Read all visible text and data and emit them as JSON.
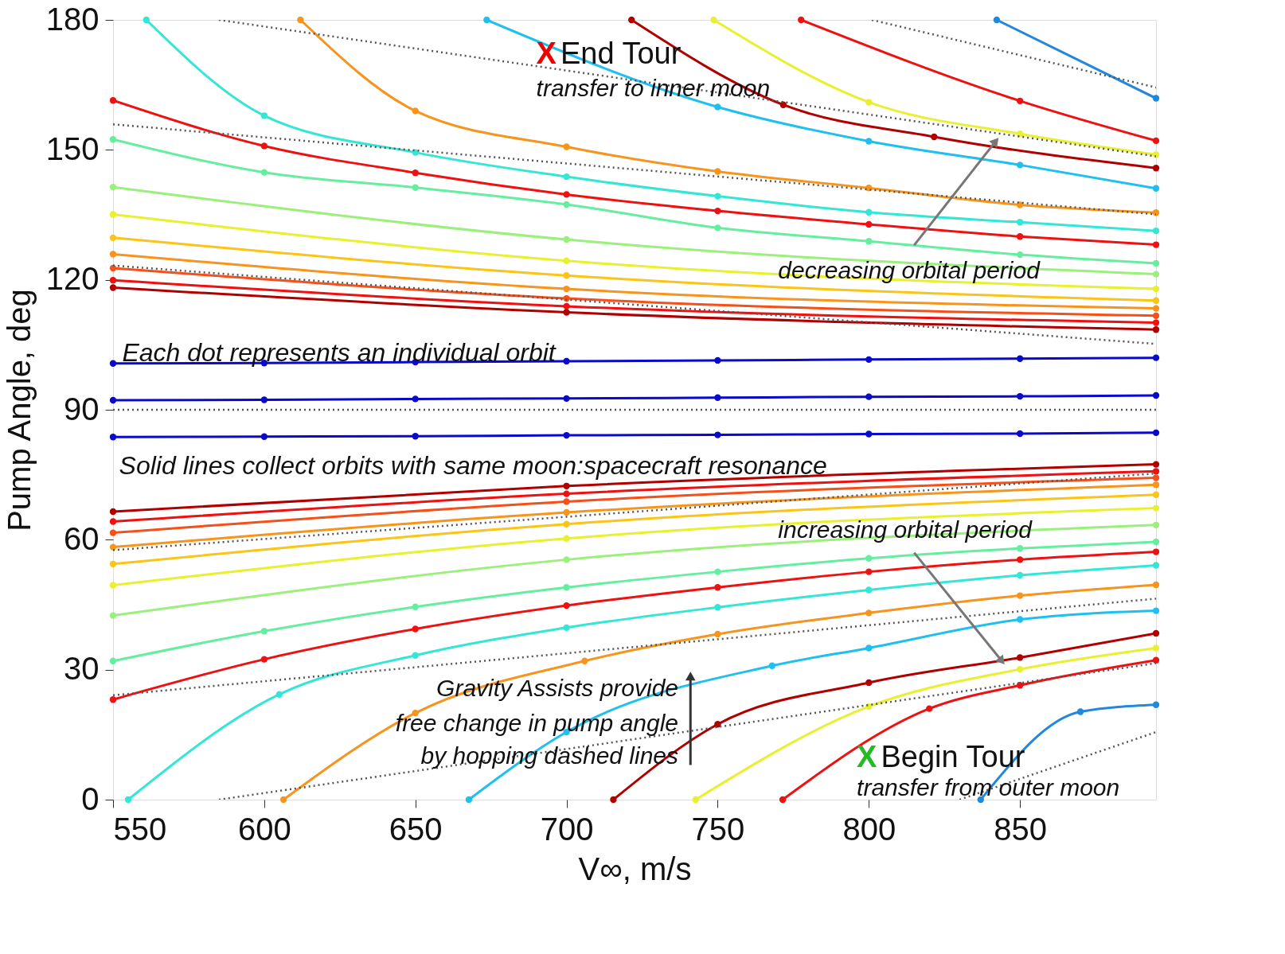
{
  "chart_data": {
    "type": "line",
    "xlabel": "V∞, m/s",
    "ylabel": "Pump Angle, deg",
    "xlim": [
      550,
      895
    ],
    "xticks": [
      550,
      600,
      650,
      700,
      750,
      800,
      850
    ],
    "ylim": [
      0,
      180
    ],
    "yticks": [
      0,
      30,
      60,
      90,
      120,
      150,
      180
    ],
    "grid": false,
    "marker": "circle",
    "line_style": "solid",
    "series": [
      {
        "color": "#0a0acc",
        "x": [
          550,
          600,
          650,
          700,
          750,
          800,
          850,
          895
        ],
        "values": [
          100.7,
          100.8,
          101,
          101.2,
          101.4,
          101.6,
          101.8,
          102
        ]
      },
      {
        "color": "#0a0acc",
        "x": [
          550,
          600,
          650,
          700,
          750,
          800,
          850,
          895
        ],
        "values": [
          92.2,
          92.3,
          92.5,
          92.6,
          92.8,
          93,
          93.1,
          93.3
        ]
      },
      {
        "color": "#0a0acc",
        "x": [
          550,
          600,
          650,
          700,
          750,
          800,
          850,
          895
        ],
        "values": [
          83.7,
          83.8,
          83.9,
          84.1,
          84.2,
          84.4,
          84.5,
          84.7
        ]
      },
      {
        "color": "#b00000",
        "x": [
          550,
          700,
          895
        ],
        "values": [
          118.2,
          112.5,
          108.5
        ]
      },
      {
        "color": "#ee1111",
        "x": [
          550,
          700,
          895
        ],
        "values": [
          119.9,
          113.9,
          110.1
        ]
      },
      {
        "color": "#f5501a",
        "x": [
          550,
          700,
          895
        ],
        "values": [
          122.7,
          115.7,
          111.7
        ]
      },
      {
        "color": "#f7941d",
        "x": [
          550,
          700,
          895
        ],
        "values": [
          125.9,
          117.9,
          113.4
        ]
      },
      {
        "color": "#fbc418",
        "x": [
          550,
          700,
          895
        ],
        "values": [
          129.7,
          121,
          115.2
        ]
      },
      {
        "color": "#e8f030",
        "x": [
          550,
          700,
          895
        ],
        "values": [
          135.1,
          124.4,
          117.9
        ]
      },
      {
        "color": "#9af07a",
        "x": [
          550,
          700,
          895
        ],
        "values": [
          141.4,
          129.3,
          121.3
        ]
      },
      {
        "color": "#66eea0",
        "x": [
          550,
          600,
          650,
          700,
          750,
          800,
          850,
          895
        ],
        "values": [
          152.4,
          144.8,
          141.3,
          137.4,
          132,
          128.9,
          125.8,
          123.8
        ]
      },
      {
        "color": "#ee1111",
        "x": [
          550,
          600,
          650,
          700,
          750,
          800,
          850,
          895
        ],
        "values": [
          161.4,
          150.9,
          144.7,
          139.7,
          135.9,
          132.8,
          130,
          128.1
        ]
      },
      {
        "color": "#33e6d6",
        "x": [
          561,
          600,
          650,
          700,
          750,
          800,
          850,
          895
        ],
        "values": [
          180,
          157.9,
          149.4,
          143.8,
          139.3,
          135.6,
          133.3,
          131.3
        ]
      },
      {
        "color": "#f7941d",
        "x": [
          612,
          650,
          700,
          750,
          800,
          850,
          895
        ],
        "values": [
          180,
          159,
          150.7,
          145,
          141.2,
          137.3,
          135.5
        ]
      },
      {
        "color": "#1fbfef",
        "x": [
          673.6,
          750,
          800,
          850,
          895
        ],
        "values": [
          180,
          159.9,
          152,
          146.5,
          141.1
        ]
      },
      {
        "color": "#b00000",
        "x": [
          721.5,
          771.7,
          821.6,
          895
        ],
        "values": [
          180,
          160.4,
          153,
          145.8
        ]
      },
      {
        "color": "#e8f030",
        "x": [
          748.7,
          800,
          850,
          895
        ],
        "values": [
          180,
          161,
          153.7,
          148.9
        ]
      },
      {
        "color": "#ee1111",
        "x": [
          777.6,
          850,
          895
        ],
        "values": [
          180,
          161.3,
          152.1
        ]
      },
      {
        "color": "#2288dd",
        "x": [
          842.3,
          895
        ],
        "values": [
          180,
          161.9
        ]
      },
      {
        "color": "#b00000",
        "x": [
          550,
          700,
          895
        ],
        "values": [
          66.5,
          72.4,
          77.4
        ]
      },
      {
        "color": "#ee1111",
        "x": [
          550,
          700,
          895
        ],
        "values": [
          64.2,
          70.6,
          75.8
        ]
      },
      {
        "color": "#f5501a",
        "x": [
          550,
          700,
          895
        ],
        "values": [
          61.6,
          68.8,
          74.3
        ]
      },
      {
        "color": "#f7941d",
        "x": [
          550,
          700,
          895
        ],
        "values": [
          58.3,
          66.3,
          72.7
        ]
      },
      {
        "color": "#fbc418",
        "x": [
          550,
          700,
          895
        ],
        "values": [
          54.4,
          63.6,
          70.4
        ]
      },
      {
        "color": "#e8f030",
        "x": [
          550,
          700,
          895
        ],
        "values": [
          49.5,
          60.3,
          67.3
        ]
      },
      {
        "color": "#9af07a",
        "x": [
          550,
          700,
          895
        ],
        "values": [
          42.5,
          55.4,
          63.4
        ]
      },
      {
        "color": "#66eea0",
        "x": [
          550,
          600,
          650,
          700,
          750,
          800,
          850,
          895
        ],
        "values": [
          32,
          38.9,
          44.5,
          49,
          52.6,
          55.7,
          58,
          59.5
        ]
      },
      {
        "color": "#ee1111",
        "x": [
          550,
          600,
          650,
          700,
          750,
          800,
          850,
          895
        ],
        "values": [
          23.1,
          32.4,
          39.4,
          44.8,
          49,
          52.6,
          55.4,
          57.2
        ]
      },
      {
        "color": "#33e6d6",
        "x": [
          555,
          605,
          650,
          700,
          750,
          800,
          850,
          895
        ],
        "values": [
          0,
          24.3,
          33.3,
          39.7,
          44.4,
          48.4,
          51.8,
          54.1
        ]
      },
      {
        "color": "#f7941d",
        "x": [
          606.4,
          650,
          706,
          750,
          800,
          850,
          895
        ],
        "values": [
          0,
          20,
          32,
          38.2,
          43.1,
          47.1,
          49.6
        ]
      },
      {
        "color": "#1fbfef",
        "x": [
          667.7,
          700,
          768,
          800,
          850,
          895
        ],
        "values": [
          0,
          15.6,
          30.9,
          35,
          41.6,
          43.6
        ]
      },
      {
        "color": "#b00000",
        "x": [
          715.5,
          750,
          800,
          850,
          895
        ],
        "values": [
          0,
          17.4,
          27,
          32.8,
          38.4
        ]
      },
      {
        "color": "#e8f030",
        "x": [
          742.7,
          800,
          850,
          895
        ],
        "values": [
          0,
          21.5,
          30.1,
          35
        ]
      },
      {
        "color": "#ee1111",
        "x": [
          771.5,
          820,
          850,
          895
        ],
        "values": [
          0,
          21,
          26.4,
          32.2
        ]
      },
      {
        "color": "#2288dd",
        "x": [
          837,
          870,
          895
        ],
        "values": [
          0,
          20.3,
          21.9
        ]
      },
      {
        "color": "#555555",
        "marker": "none",
        "line_style": "dotted",
        "x": [
          585,
          895
        ],
        "values": [
          180,
          148.5
        ]
      },
      {
        "color": "#555555",
        "marker": "none",
        "line_style": "dotted",
        "x": [
          801,
          895
        ],
        "values": [
          180,
          164.4
        ]
      },
      {
        "color": "#555555",
        "marker": "none",
        "line_style": "dotted",
        "x": [
          550,
          895
        ],
        "values": [
          155.9,
          135.1
        ]
      },
      {
        "color": "#555555",
        "marker": "none",
        "line_style": "dotted",
        "x": [
          550,
          895
        ],
        "values": [
          123.3,
          105.2
        ]
      },
      {
        "color": "#555555",
        "marker": "none",
        "line_style": "dotted",
        "x": [
          550,
          895
        ],
        "values": [
          90,
          90
        ]
      },
      {
        "color": "#555555",
        "marker": "none",
        "line_style": "dotted",
        "x": [
          550,
          895
        ],
        "values": [
          57.6,
          75.3
        ]
      },
      {
        "color": "#555555",
        "marker": "none",
        "line_style": "dotted",
        "x": [
          550,
          895
        ],
        "values": [
          24.1,
          46.4
        ]
      },
      {
        "color": "#555555",
        "marker": "none",
        "line_style": "dotted",
        "x": [
          585,
          895
        ],
        "values": [
          0,
          31.5
        ]
      },
      {
        "color": "#555555",
        "marker": "none",
        "line_style": "dotted",
        "x": [
          830,
          895
        ],
        "values": [
          0,
          15.6
        ]
      }
    ],
    "annotations": [
      "X",
      "End Tour",
      "transfer to inner moon",
      "decreasing orbital period",
      "Each dot represents an individual orbit",
      "Solid lines collect orbits with same moon:spacecraft resonance",
      {
        "text": "increasing orbital period",
        "x": 844,
        "y": 32
      },
      "Gravity Assists provide",
      "free change in pump angle",
      "by hopping dashed lines",
      "X",
      "Begin Tour",
      "transfer from outer moon"
    ]
  }
}
